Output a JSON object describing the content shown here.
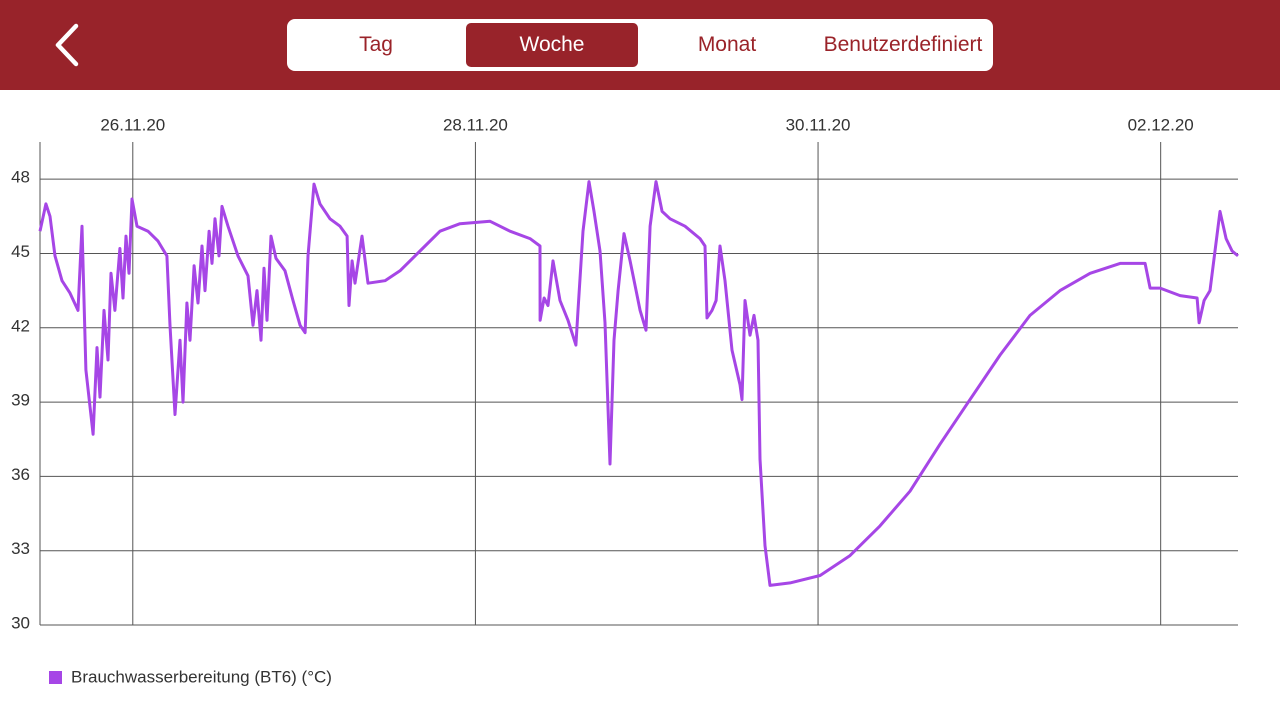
{
  "header": {
    "tabs": [
      "Tag",
      "Woche",
      "Monat",
      "Benutzerdefiniert"
    ],
    "active_tab": 1
  },
  "chart_data": {
    "type": "line",
    "xlim": [
      "2020-11-25T11:00",
      "2020-12-02T10:50"
    ],
    "xticks": [
      {
        "value": "2020-11-26T00:00",
        "label": "26.11.20"
      },
      {
        "value": "2020-11-28T00:00",
        "label": "28.11.20"
      },
      {
        "value": "2020-11-30T00:00",
        "label": "30.11.20"
      },
      {
        "value": "2020-12-02T00:00",
        "label": "02.12.20"
      }
    ],
    "ylim": [
      30,
      49.5
    ],
    "yticks": [
      30,
      33,
      36,
      39,
      42,
      45,
      48
    ],
    "grid": true,
    "legend": "bottom-left",
    "x": [
      "2020-11-25T11:00",
      "2020-11-25T11:50",
      "2020-11-25T12:24",
      "2020-11-25T13:06",
      "2020-11-25T14:05",
      "2020-11-25T15:12",
      "2020-11-25T16:19",
      "2020-11-25T16:53",
      "2020-11-25T17:26",
      "2020-11-25T18:26",
      "2020-11-25T18:59",
      "2020-11-25T19:24",
      "2020-11-25T19:58",
      "2020-11-25T20:32",
      "2020-11-25T20:57",
      "2020-11-25T21:30",
      "2020-11-25T22:12",
      "2020-11-25T22:38",
      "2020-11-25T23:03",
      "2020-11-25T23:28",
      "2020-11-25T23:53",
      "2020-11-26T00:35",
      "2020-11-26T02:08",
      "2020-11-26T03:32",
      "2020-11-26T04:47",
      "2020-11-26T05:13",
      "2020-11-26T05:55",
      "2020-11-26T06:37",
      "2020-11-26T07:02",
      "2020-11-26T07:35",
      "2020-11-26T08:01",
      "2020-11-26T08:35",
      "2020-11-26T09:08",
      "2020-11-26T09:42",
      "2020-11-26T10:07",
      "2020-11-26T10:41",
      "2020-11-26T11:06",
      "2020-11-26T11:31",
      "2020-11-26T12:05",
      "2020-11-26T12:30",
      "2020-11-26T13:20",
      "2020-11-26T14:44",
      "2020-11-26T16:08",
      "2020-11-26T16:50",
      "2020-11-26T17:24",
      "2020-11-26T17:58",
      "2020-11-26T18:23",
      "2020-11-26T18:48",
      "2020-11-26T19:22",
      "2020-11-26T20:04",
      "2020-11-26T21:19",
      "2020-11-26T22:27",
      "2020-11-26T23:26",
      "2020-11-27T00:08",
      "2020-11-27T00:33",
      "2020-11-27T01:23",
      "2020-11-27T02:14",
      "2020-11-27T03:38",
      "2020-11-27T05:02",
      "2020-11-27T06:01",
      "2020-11-27T06:17",
      "2020-11-27T06:43",
      "2020-11-27T07:08",
      "2020-11-27T08:07",
      "2020-11-27T08:57",
      "2020-11-27T11:20",
      "2020-11-27T13:26",
      "2020-11-27T16:14",
      "2020-11-27T19:02",
      "2020-11-27T21:50",
      "2020-11-28T02:03",
      "2020-11-28T04:51",
      "2020-11-28T07:39",
      "2020-11-28T09:03",
      "2020-11-28T09:04",
      "2020-11-28T09:37",
      "2020-11-28T10:10",
      "2020-11-28T10:52",
      "2020-11-28T11:51",
      "2020-11-28T12:58",
      "2020-11-28T14:05",
      "2020-11-28T14:22",
      "2020-11-28T15:04",
      "2020-11-28T15:55",
      "2020-11-28T16:37",
      "2020-11-28T17:27",
      "2020-11-28T18:09",
      "2020-11-28T18:51",
      "2020-11-28T19:25",
      "2020-11-28T19:59",
      "2020-11-28T20:49",
      "2020-11-28T21:40",
      "2020-11-28T23:04",
      "2020-11-28T23:54",
      "2020-11-29T00:28",
      "2020-11-29T01:18",
      "2020-11-29T02:09",
      "2020-11-29T03:16",
      "2020-11-29T05:22",
      "2020-11-29T07:28",
      "2020-11-29T08:10",
      "2020-11-29T08:27",
      "2020-11-29T09:09",
      "2020-11-29T09:43",
      "2020-11-29T10:16",
      "2020-11-29T10:58",
      "2020-11-29T11:57",
      "2020-11-29T13:04",
      "2020-11-29T13:21",
      "2020-11-29T13:46",
      "2020-11-29T14:28",
      "2020-11-29T15:02",
      "2020-11-29T15:35",
      "2020-11-29T15:52",
      "2020-11-29T16:34",
      "2020-11-29T17:16",
      "2020-11-29T20:05",
      "2020-11-30T00:17",
      "2020-11-30T04:29",
      "2020-11-30T08:41",
      "2020-11-30T12:53",
      "2020-11-30T17:05",
      "2020-11-30T21:17",
      "2020-12-01T01:30",
      "2020-12-01T05:42",
      "2020-12-01T09:54",
      "2020-12-01T14:07",
      "2020-12-01T18:19",
      "2020-12-01T21:49",
      "2020-12-01T22:31",
      "2020-12-01T23:55",
      "2020-12-02T02:43",
      "2020-12-02T05:06",
      "2020-12-02T05:23",
      "2020-12-02T06:05",
      "2020-12-02T06:55",
      "2020-12-02T07:37",
      "2020-12-02T08:19",
      "2020-12-02T09:10",
      "2020-12-02T10:00",
      "2020-12-02T10:50"
    ],
    "series": [
      {
        "name": "Brauchwasserbereitung (BT6) (°C)",
        "color": "#a646e6",
        "values": [
          45.9,
          47.0,
          46.5,
          44.9,
          43.9,
          43.4,
          42.7,
          46.1,
          40.3,
          37.7,
          41.2,
          39.2,
          42.7,
          40.7,
          44.2,
          42.7,
          45.2,
          43.2,
          45.7,
          44.2,
          47.2,
          46.1,
          45.9,
          45.5,
          44.9,
          42.1,
          38.5,
          41.5,
          39.0,
          43.0,
          41.5,
          44.5,
          43.0,
          45.3,
          43.5,
          45.9,
          44.6,
          46.4,
          44.9,
          46.9,
          46.1,
          44.9,
          44.1,
          42.1,
          43.5,
          41.5,
          44.4,
          42.3,
          45.7,
          44.8,
          44.3,
          43.1,
          42.1,
          41.8,
          44.9,
          47.8,
          47.0,
          46.4,
          46.1,
          45.7,
          42.9,
          44.7,
          43.8,
          45.7,
          43.8,
          43.9,
          44.3,
          45.1,
          45.9,
          46.2,
          46.3,
          45.9,
          45.6,
          45.3,
          42.3,
          43.2,
          42.9,
          44.7,
          43.1,
          42.3,
          41.3,
          42.7,
          45.9,
          47.9,
          46.7,
          45.1,
          42.2,
          36.5,
          41.5,
          43.5,
          45.8,
          44.7,
          42.7,
          41.9,
          46.1,
          47.9,
          46.7,
          46.4,
          46.1,
          45.6,
          45.3,
          42.4,
          42.7,
          43.1,
          45.3,
          43.9,
          41.1,
          39.7,
          39.1,
          43.1,
          41.7,
          42.5,
          41.5,
          36.7,
          33.2,
          31.6,
          31.7,
          32.0,
          32.8,
          34.0,
          35.4,
          37.3,
          39.1,
          40.9,
          42.5,
          43.5,
          44.2,
          44.6,
          44.6,
          43.6,
          43.6,
          43.3,
          43.2,
          42.2,
          43.1,
          43.5,
          45.1,
          46.7,
          45.6,
          45.1,
          44.9
        ]
      }
    ]
  }
}
